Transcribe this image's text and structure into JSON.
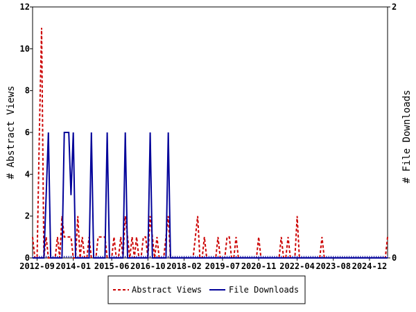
{
  "chart_data": {
    "type": "line",
    "title": "",
    "ylabel_left": "# Abstract Views",
    "ylabel_right": "# File Downloads",
    "ylim_left": [
      0,
      12
    ],
    "ylim_right": [
      0,
      2
    ],
    "yticks_left": [
      0,
      2,
      4,
      6,
      8,
      10,
      12
    ],
    "yticks_right": [
      0,
      2
    ],
    "x_start": "2012-07",
    "x_end": "2025-08",
    "x_ticks": [
      "2012-09",
      "2014-01",
      "2015-06",
      "2016-10",
      "2018-02",
      "2019-07",
      "2020-11",
      "2022-04",
      "2023-08",
      "2024-12"
    ],
    "grid": false,
    "legend_position": "bottom",
    "series": [
      {
        "name": "Abstract Views",
        "axis": "left",
        "color": "#cc0000",
        "style": "dashed",
        "points": [
          [
            "2012-07",
            1
          ],
          [
            "2012-08",
            0
          ],
          [
            "2012-09",
            0
          ],
          [
            "2012-10",
            6
          ],
          [
            "2012-11",
            11
          ],
          [
            "2012-12",
            0
          ],
          [
            "2013-01",
            1
          ],
          [
            "2013-02",
            0
          ],
          [
            "2013-03",
            0
          ],
          [
            "2013-04",
            0
          ],
          [
            "2013-05",
            0
          ],
          [
            "2013-06",
            1
          ],
          [
            "2013-07",
            0
          ],
          [
            "2013-08",
            2
          ],
          [
            "2013-09",
            1
          ],
          [
            "2013-10",
            1
          ],
          [
            "2013-11",
            1
          ],
          [
            "2013-12",
            1
          ],
          [
            "2014-01",
            0
          ],
          [
            "2014-02",
            0
          ],
          [
            "2014-03",
            2
          ],
          [
            "2014-04",
            0
          ],
          [
            "2014-05",
            1
          ],
          [
            "2014-06",
            0
          ],
          [
            "2014-07",
            0
          ],
          [
            "2014-08",
            1
          ],
          [
            "2014-09",
            0
          ],
          [
            "2014-10",
            0
          ],
          [
            "2014-11",
            0
          ],
          [
            "2014-12",
            1
          ],
          [
            "2015-01",
            1
          ],
          [
            "2015-02",
            1
          ],
          [
            "2015-03",
            1
          ],
          [
            "2015-04",
            0
          ],
          [
            "2015-05",
            0
          ],
          [
            "2015-06",
            0
          ],
          [
            "2015-07",
            1
          ],
          [
            "2015-08",
            0
          ],
          [
            "2015-09",
            0
          ],
          [
            "2015-10",
            1
          ],
          [
            "2015-11",
            0
          ],
          [
            "2015-12",
            2
          ],
          [
            "2016-01",
            1
          ],
          [
            "2016-02",
            0
          ],
          [
            "2016-03",
            1
          ],
          [
            "2016-04",
            0
          ],
          [
            "2016-05",
            1
          ],
          [
            "2016-06",
            0
          ],
          [
            "2016-07",
            0
          ],
          [
            "2016-08",
            1
          ],
          [
            "2016-09",
            1
          ],
          [
            "2016-10",
            0
          ],
          [
            "2016-11",
            2
          ],
          [
            "2016-12",
            1
          ],
          [
            "2017-01",
            0
          ],
          [
            "2017-02",
            1
          ],
          [
            "2017-03",
            0
          ],
          [
            "2017-04",
            0
          ],
          [
            "2017-05",
            0
          ],
          [
            "2017-06",
            1
          ],
          [
            "2017-07",
            2
          ],
          [
            "2017-08",
            0
          ],
          [
            "2017-09",
            0
          ],
          [
            "2017-10",
            0
          ],
          [
            "2017-11",
            0
          ],
          [
            "2017-12",
            0
          ],
          [
            "2018-01",
            0
          ],
          [
            "2018-02",
            0
          ],
          [
            "2018-03",
            0
          ],
          [
            "2018-04",
            0
          ],
          [
            "2018-05",
            0
          ],
          [
            "2018-06",
            0
          ],
          [
            "2018-07",
            1
          ],
          [
            "2018-08",
            2
          ],
          [
            "2018-09",
            0
          ],
          [
            "2018-10",
            0
          ],
          [
            "2018-11",
            1
          ],
          [
            "2018-12",
            0
          ],
          [
            "2019-01",
            0
          ],
          [
            "2019-02",
            0
          ],
          [
            "2019-03",
            0
          ],
          [
            "2019-04",
            0
          ],
          [
            "2019-05",
            1
          ],
          [
            "2019-06",
            0
          ],
          [
            "2019-07",
            0
          ],
          [
            "2019-08",
            0
          ],
          [
            "2019-09",
            1
          ],
          [
            "2019-10",
            1
          ],
          [
            "2019-11",
            0
          ],
          [
            "2019-12",
            0
          ],
          [
            "2020-01",
            1
          ],
          [
            "2020-02",
            0
          ],
          [
            "2020-03",
            0
          ],
          [
            "2020-04",
            0
          ],
          [
            "2020-05",
            0
          ],
          [
            "2020-06",
            0
          ],
          [
            "2020-07",
            0
          ],
          [
            "2020-08",
            0
          ],
          [
            "2020-09",
            0
          ],
          [
            "2020-10",
            0
          ],
          [
            "2020-11",
            1
          ],
          [
            "2020-12",
            0
          ],
          [
            "2021-01",
            0
          ],
          [
            "2021-02",
            0
          ],
          [
            "2021-03",
            0
          ],
          [
            "2021-04",
            0
          ],
          [
            "2021-05",
            0
          ],
          [
            "2021-06",
            0
          ],
          [
            "2021-07",
            0
          ],
          [
            "2021-08",
            0
          ],
          [
            "2021-09",
            1
          ],
          [
            "2021-10",
            0
          ],
          [
            "2021-11",
            0
          ],
          [
            "2021-12",
            1
          ],
          [
            "2022-01",
            0
          ],
          [
            "2022-02",
            0
          ],
          [
            "2022-03",
            0
          ],
          [
            "2022-04",
            2
          ],
          [
            "2022-05",
            0
          ],
          [
            "2022-06",
            0
          ],
          [
            "2022-07",
            0
          ],
          [
            "2022-08",
            0
          ],
          [
            "2022-09",
            0
          ],
          [
            "2022-10",
            0
          ],
          [
            "2022-11",
            0
          ],
          [
            "2022-12",
            0
          ],
          [
            "2023-01",
            0
          ],
          [
            "2023-02",
            0
          ],
          [
            "2023-03",
            1
          ],
          [
            "2023-04",
            0
          ],
          [
            "2023-05",
            0
          ],
          [
            "2023-06",
            0
          ],
          [
            "2023-07",
            0
          ],
          [
            "2023-08",
            0
          ],
          [
            "2023-09",
            0
          ],
          [
            "2023-10",
            0
          ],
          [
            "2023-11",
            0
          ],
          [
            "2023-12",
            0
          ],
          [
            "2024-01",
            0
          ],
          [
            "2024-02",
            0
          ],
          [
            "2024-03",
            0
          ],
          [
            "2024-04",
            0
          ],
          [
            "2024-05",
            0
          ],
          [
            "2024-06",
            0
          ],
          [
            "2024-07",
            0
          ],
          [
            "2024-08",
            0
          ],
          [
            "2024-09",
            0
          ],
          [
            "2024-10",
            0
          ],
          [
            "2024-11",
            0
          ],
          [
            "2024-12",
            0
          ],
          [
            "2025-01",
            0
          ],
          [
            "2025-02",
            0
          ],
          [
            "2025-03",
            0
          ],
          [
            "2025-04",
            0
          ],
          [
            "2025-05",
            0
          ],
          [
            "2025-06",
            0
          ],
          [
            "2025-07",
            0
          ],
          [
            "2025-08",
            1
          ]
        ]
      },
      {
        "name": "File Downloads",
        "axis": "right",
        "color": "#000099",
        "style": "solid",
        "points": [
          [
            "2012-07",
            0
          ],
          [
            "2012-08",
            0
          ],
          [
            "2012-09",
            0
          ],
          [
            "2012-10",
            0
          ],
          [
            "2012-11",
            0
          ],
          [
            "2012-12",
            0
          ],
          [
            "2013-01",
            0.5
          ],
          [
            "2013-02",
            1
          ],
          [
            "2013-03",
            0
          ],
          [
            "2013-04",
            0
          ],
          [
            "2013-05",
            0
          ],
          [
            "2013-06",
            0
          ],
          [
            "2013-07",
            0
          ],
          [
            "2013-08",
            0
          ],
          [
            "2013-09",
            1
          ],
          [
            "2013-10",
            1
          ],
          [
            "2013-11",
            1
          ],
          [
            "2013-12",
            0.5
          ],
          [
            "2014-01",
            1
          ],
          [
            "2014-02",
            0
          ],
          [
            "2014-03",
            0
          ],
          [
            "2014-04",
            0
          ],
          [
            "2014-05",
            0
          ],
          [
            "2014-06",
            0
          ],
          [
            "2014-07",
            0
          ],
          [
            "2014-08",
            0
          ],
          [
            "2014-09",
            1
          ],
          [
            "2014-10",
            0
          ],
          [
            "2014-11",
            0
          ],
          [
            "2014-12",
            0
          ],
          [
            "2015-01",
            0
          ],
          [
            "2015-02",
            0
          ],
          [
            "2015-03",
            0
          ],
          [
            "2015-04",
            1
          ],
          [
            "2015-05",
            0
          ],
          [
            "2015-06",
            0
          ],
          [
            "2015-07",
            0
          ],
          [
            "2015-08",
            0
          ],
          [
            "2015-09",
            0
          ],
          [
            "2015-10",
            0
          ],
          [
            "2015-11",
            0
          ],
          [
            "2015-12",
            1
          ],
          [
            "2016-01",
            0
          ],
          [
            "2016-02",
            0
          ],
          [
            "2016-03",
            0
          ],
          [
            "2016-04",
            0
          ],
          [
            "2016-05",
            0
          ],
          [
            "2016-06",
            0
          ],
          [
            "2016-07",
            0
          ],
          [
            "2016-08",
            0
          ],
          [
            "2016-09",
            0
          ],
          [
            "2016-10",
            0
          ],
          [
            "2016-11",
            1
          ],
          [
            "2016-12",
            0
          ],
          [
            "2017-01",
            0
          ],
          [
            "2017-02",
            0
          ],
          [
            "2017-03",
            0
          ],
          [
            "2017-04",
            0
          ],
          [
            "2017-05",
            0
          ],
          [
            "2017-06",
            0
          ],
          [
            "2017-07",
            1
          ],
          [
            "2017-08",
            0
          ],
          [
            "2017-09",
            0
          ],
          [
            "2017-10",
            0
          ],
          [
            "2017-11",
            0
          ],
          [
            "2017-12",
            0
          ],
          [
            "2018-01",
            0
          ],
          [
            "2025-08",
            0
          ]
        ]
      }
    ]
  },
  "legend": {
    "abstract_views_label": "Abstract Views",
    "file_downloads_label": "File Downloads"
  }
}
